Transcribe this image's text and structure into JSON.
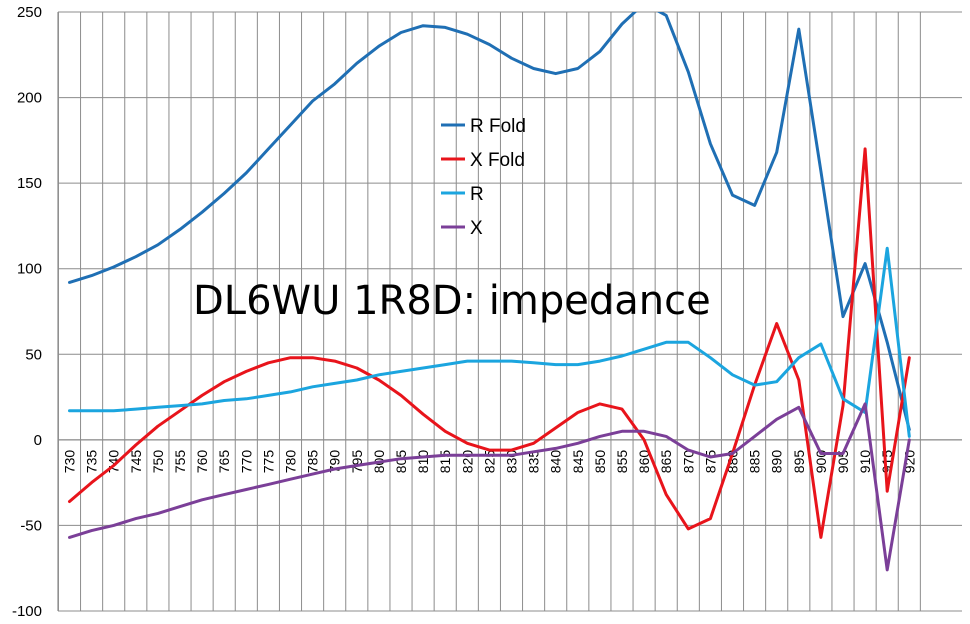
{
  "chart_data": {
    "type": "line",
    "title": "DL6WU 1R8D: impedance",
    "xlabel": "",
    "ylabel": "",
    "ylim": [
      -100,
      250
    ],
    "yticks": [
      -100,
      -50,
      0,
      50,
      100,
      150,
      200,
      250
    ],
    "grid": true,
    "legend_position": "center",
    "categories": [
      "730",
      "735",
      "740",
      "745",
      "750",
      "755",
      "760",
      "765",
      "770",
      "775",
      "780",
      "785",
      "790",
      "795",
      "800",
      "805",
      "810",
      "815",
      "820",
      "825",
      "830",
      "835",
      "840",
      "845",
      "850",
      "855",
      "860",
      "865",
      "870",
      "875",
      "880",
      "885",
      "890",
      "895",
      "900",
      "905",
      "910",
      "915",
      "920"
    ],
    "series": [
      {
        "name": "R Fold",
        "color": "#1F6FB4",
        "values": [
          92,
          96,
          101,
          107,
          114,
          123,
          133,
          144,
          156,
          170,
          184,
          198,
          208,
          220,
          230,
          238,
          242,
          241,
          237,
          231,
          223,
          217,
          214,
          217,
          227,
          243,
          255,
          248,
          215,
          173,
          143,
          137,
          168,
          240,
          157,
          72,
          103,
          57,
          6
        ]
      },
      {
        "name": "X Fold",
        "color": "#E8141B",
        "values": [
          -36,
          -25,
          -15,
          -3,
          8,
          17,
          26,
          34,
          40,
          45,
          48,
          48,
          46,
          42,
          35,
          26,
          15,
          5,
          -2,
          -6,
          -6,
          -2,
          7,
          16,
          21,
          18,
          0,
          -32,
          -52,
          -46,
          -8,
          32,
          68,
          35,
          -57,
          20,
          170,
          -30,
          48
        ]
      },
      {
        "name": "R",
        "color": "#1BA5DF",
        "values": [
          17,
          17,
          17,
          18,
          19,
          20,
          21,
          23,
          24,
          26,
          28,
          31,
          33,
          35,
          38,
          40,
          42,
          44,
          46,
          46,
          46,
          45,
          44,
          44,
          46,
          49,
          53,
          57,
          57,
          48,
          38,
          32,
          34,
          48,
          56,
          24,
          16,
          112,
          2
        ]
      },
      {
        "name": "X",
        "color": "#7B3F98",
        "values": [
          -57,
          -53,
          -50,
          -46,
          -43,
          -39,
          -35,
          -32,
          -29,
          -26,
          -23,
          -20,
          -17,
          -15,
          -13,
          -11,
          -10,
          -9,
          -9,
          -9,
          -9,
          -7,
          -5,
          -2,
          2,
          5,
          5,
          2,
          -6,
          -10,
          -8,
          2,
          12,
          19,
          -8,
          -8,
          21,
          -76,
          0
        ]
      }
    ]
  }
}
